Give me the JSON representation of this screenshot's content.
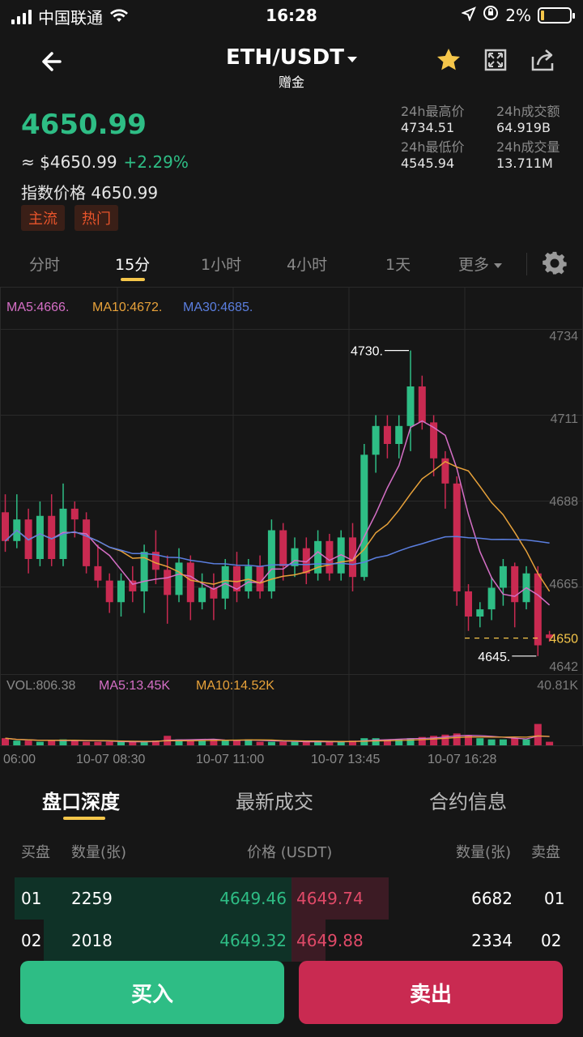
{
  "status_bar": {
    "carrier": "中国联通",
    "time": "16:28",
    "battery": "2%"
  },
  "header": {
    "pair": "ETH/USDT",
    "subtitle": "赠金",
    "icons": [
      "back-arrow-icon",
      "star-icon",
      "fullscreen-icon",
      "share-icon"
    ]
  },
  "ticker": {
    "last_price": "4650.99",
    "usd_price": "≈ $4650.99",
    "change": "+2.29%",
    "index_price": "指数价格 4650.99",
    "tags": [
      "主流",
      "热门"
    ],
    "stats": [
      {
        "label": "24h最高价",
        "value": "4734.51"
      },
      {
        "label": "24h成交额",
        "value": "64.919B"
      },
      {
        "label": "24h最低价",
        "value": "4545.94"
      },
      {
        "label": "24h成交量",
        "value": "13.711M"
      }
    ]
  },
  "intervals": {
    "items": [
      "分时",
      "15分",
      "1小时",
      "4小时",
      "1天",
      "更多"
    ],
    "active": "15分"
  },
  "chart_data": {
    "type": "candlestick",
    "ma_labels": {
      "ma5": "MA5:4666.",
      "ma10": "MA10:4672.",
      "ma30": "MA30:4685."
    },
    "y_ticks": [
      "4734",
      "4711",
      "4688",
      "4665",
      "4642"
    ],
    "y_range": [
      4640,
      4736
    ],
    "current_price_label": "4650",
    "high_marker": "4730.",
    "low_marker": "4645.",
    "vol_labels": {
      "vol": "VOL:806.38",
      "ma5": "MA5:13.45K",
      "ma10": "MA10:14.52K",
      "max": "40.81K"
    },
    "x_ticks": [
      "06:00",
      "10-07 08:30",
      "10-07 11:00",
      "10-07 13:45",
      "10-07 16:28"
    ],
    "candles": [
      [
        4685,
        4677,
        4690,
        4674
      ],
      [
        4677,
        4683,
        4690,
        4675
      ],
      [
        4683,
        4672,
        4686,
        4668
      ],
      [
        4672,
        4684,
        4688,
        4670
      ],
      [
        4684,
        4672,
        4690,
        4670
      ],
      [
        4672,
        4686,
        4693,
        4670
      ],
      [
        4686,
        4683,
        4688,
        4678
      ],
      [
        4683,
        4670,
        4685,
        4668
      ],
      [
        4670,
        4666,
        4676,
        4664
      ],
      [
        4666,
        4660,
        4668,
        4657
      ],
      [
        4660,
        4666,
        4668,
        4656
      ],
      [
        4666,
        4663,
        4670,
        4660
      ],
      [
        4663,
        4674,
        4676,
        4657
      ],
      [
        4674,
        4669,
        4680,
        4665
      ],
      [
        4669,
        4662,
        4673,
        4654
      ],
      [
        4662,
        4671,
        4675,
        4660
      ],
      [
        4671,
        4660,
        4673,
        4655
      ],
      [
        4660,
        4664,
        4668,
        4658
      ],
      [
        4664,
        4661,
        4668,
        4655
      ],
      [
        4661,
        4670,
        4672,
        4658
      ],
      [
        4670,
        4663,
        4674,
        4660
      ],
      [
        4663,
        4670,
        4672,
        4661
      ],
      [
        4670,
        4663,
        4673,
        4661
      ],
      [
        4663,
        4680,
        4683,
        4661
      ],
      [
        4680,
        4670,
        4682,
        4666
      ],
      [
        4670,
        4675,
        4678,
        4667
      ],
      [
        4675,
        4668,
        4678,
        4665
      ],
      [
        4668,
        4677,
        4680,
        4666
      ],
      [
        4677,
        4668,
        4679,
        4666
      ],
      [
        4668,
        4678,
        4680,
        4666
      ],
      [
        4678,
        4667,
        4682,
        4663
      ],
      [
        4667,
        4701,
        4704,
        4666
      ],
      [
        4701,
        4709,
        4712,
        4696
      ],
      [
        4709,
        4704,
        4712,
        4700
      ],
      [
        4704,
        4709,
        4712,
        4700
      ],
      [
        4709,
        4720,
        4730,
        4702
      ],
      [
        4720,
        4710,
        4723,
        4708
      ],
      [
        4710,
        4700,
        4712,
        4695
      ],
      [
        4700,
        4693,
        4702,
        4686
      ],
      [
        4693,
        4663,
        4695,
        4659
      ],
      [
        4663,
        4656,
        4665,
        4652
      ],
      [
        4656,
        4658,
        4660,
        4653
      ],
      [
        4658,
        4664,
        4667,
        4655
      ],
      [
        4664,
        4670,
        4672,
        4659
      ],
      [
        4670,
        4660,
        4671,
        4653
      ],
      [
        4660,
        4668,
        4670,
        4658
      ],
      [
        4668,
        4648,
        4670,
        4645
      ],
      [
        4651,
        4650,
        4652,
        4649
      ]
    ],
    "volumes": [
      6,
      4,
      4,
      3,
      4,
      5,
      4,
      3,
      3,
      3,
      3,
      3,
      3,
      4,
      8,
      5,
      4,
      4,
      5,
      4,
      4,
      5,
      3,
      3,
      3,
      3,
      3,
      3,
      3,
      3,
      4,
      6,
      6,
      5,
      5,
      6,
      7,
      8,
      9,
      10,
      8,
      6,
      5,
      5,
      6,
      5,
      18,
      3
    ]
  },
  "bottom_tabs": {
    "items": [
      "盘口深度",
      "最新成交",
      "合约信息"
    ],
    "active": "盘口深度"
  },
  "orderbook": {
    "headers": {
      "bid_side": "买盘",
      "bid_qty": "数量(张)",
      "price": "价格 (USDT)",
      "ask_qty": "数量(张)",
      "ask_side": "卖盘"
    },
    "rows": [
      {
        "bid_idx": "01",
        "bid_qty": "2259",
        "bid_price": "4649.46",
        "ask_price": "4649.74",
        "ask_qty": "6682",
        "ask_idx": "01"
      },
      {
        "bid_idx": "02",
        "bid_qty": "2018",
        "bid_price": "4649.32",
        "ask_price": "4649.88",
        "ask_qty": "2334",
        "ask_idx": "02"
      }
    ]
  },
  "actions": {
    "buy": "买入",
    "sell": "卖出"
  },
  "colors": {
    "up": "#2ebd85",
    "down": "#c92a51",
    "ma5": "#d56fc6",
    "ma10": "#e8a23a",
    "ma30": "#5b7fe0",
    "accent": "#f5c64a"
  }
}
